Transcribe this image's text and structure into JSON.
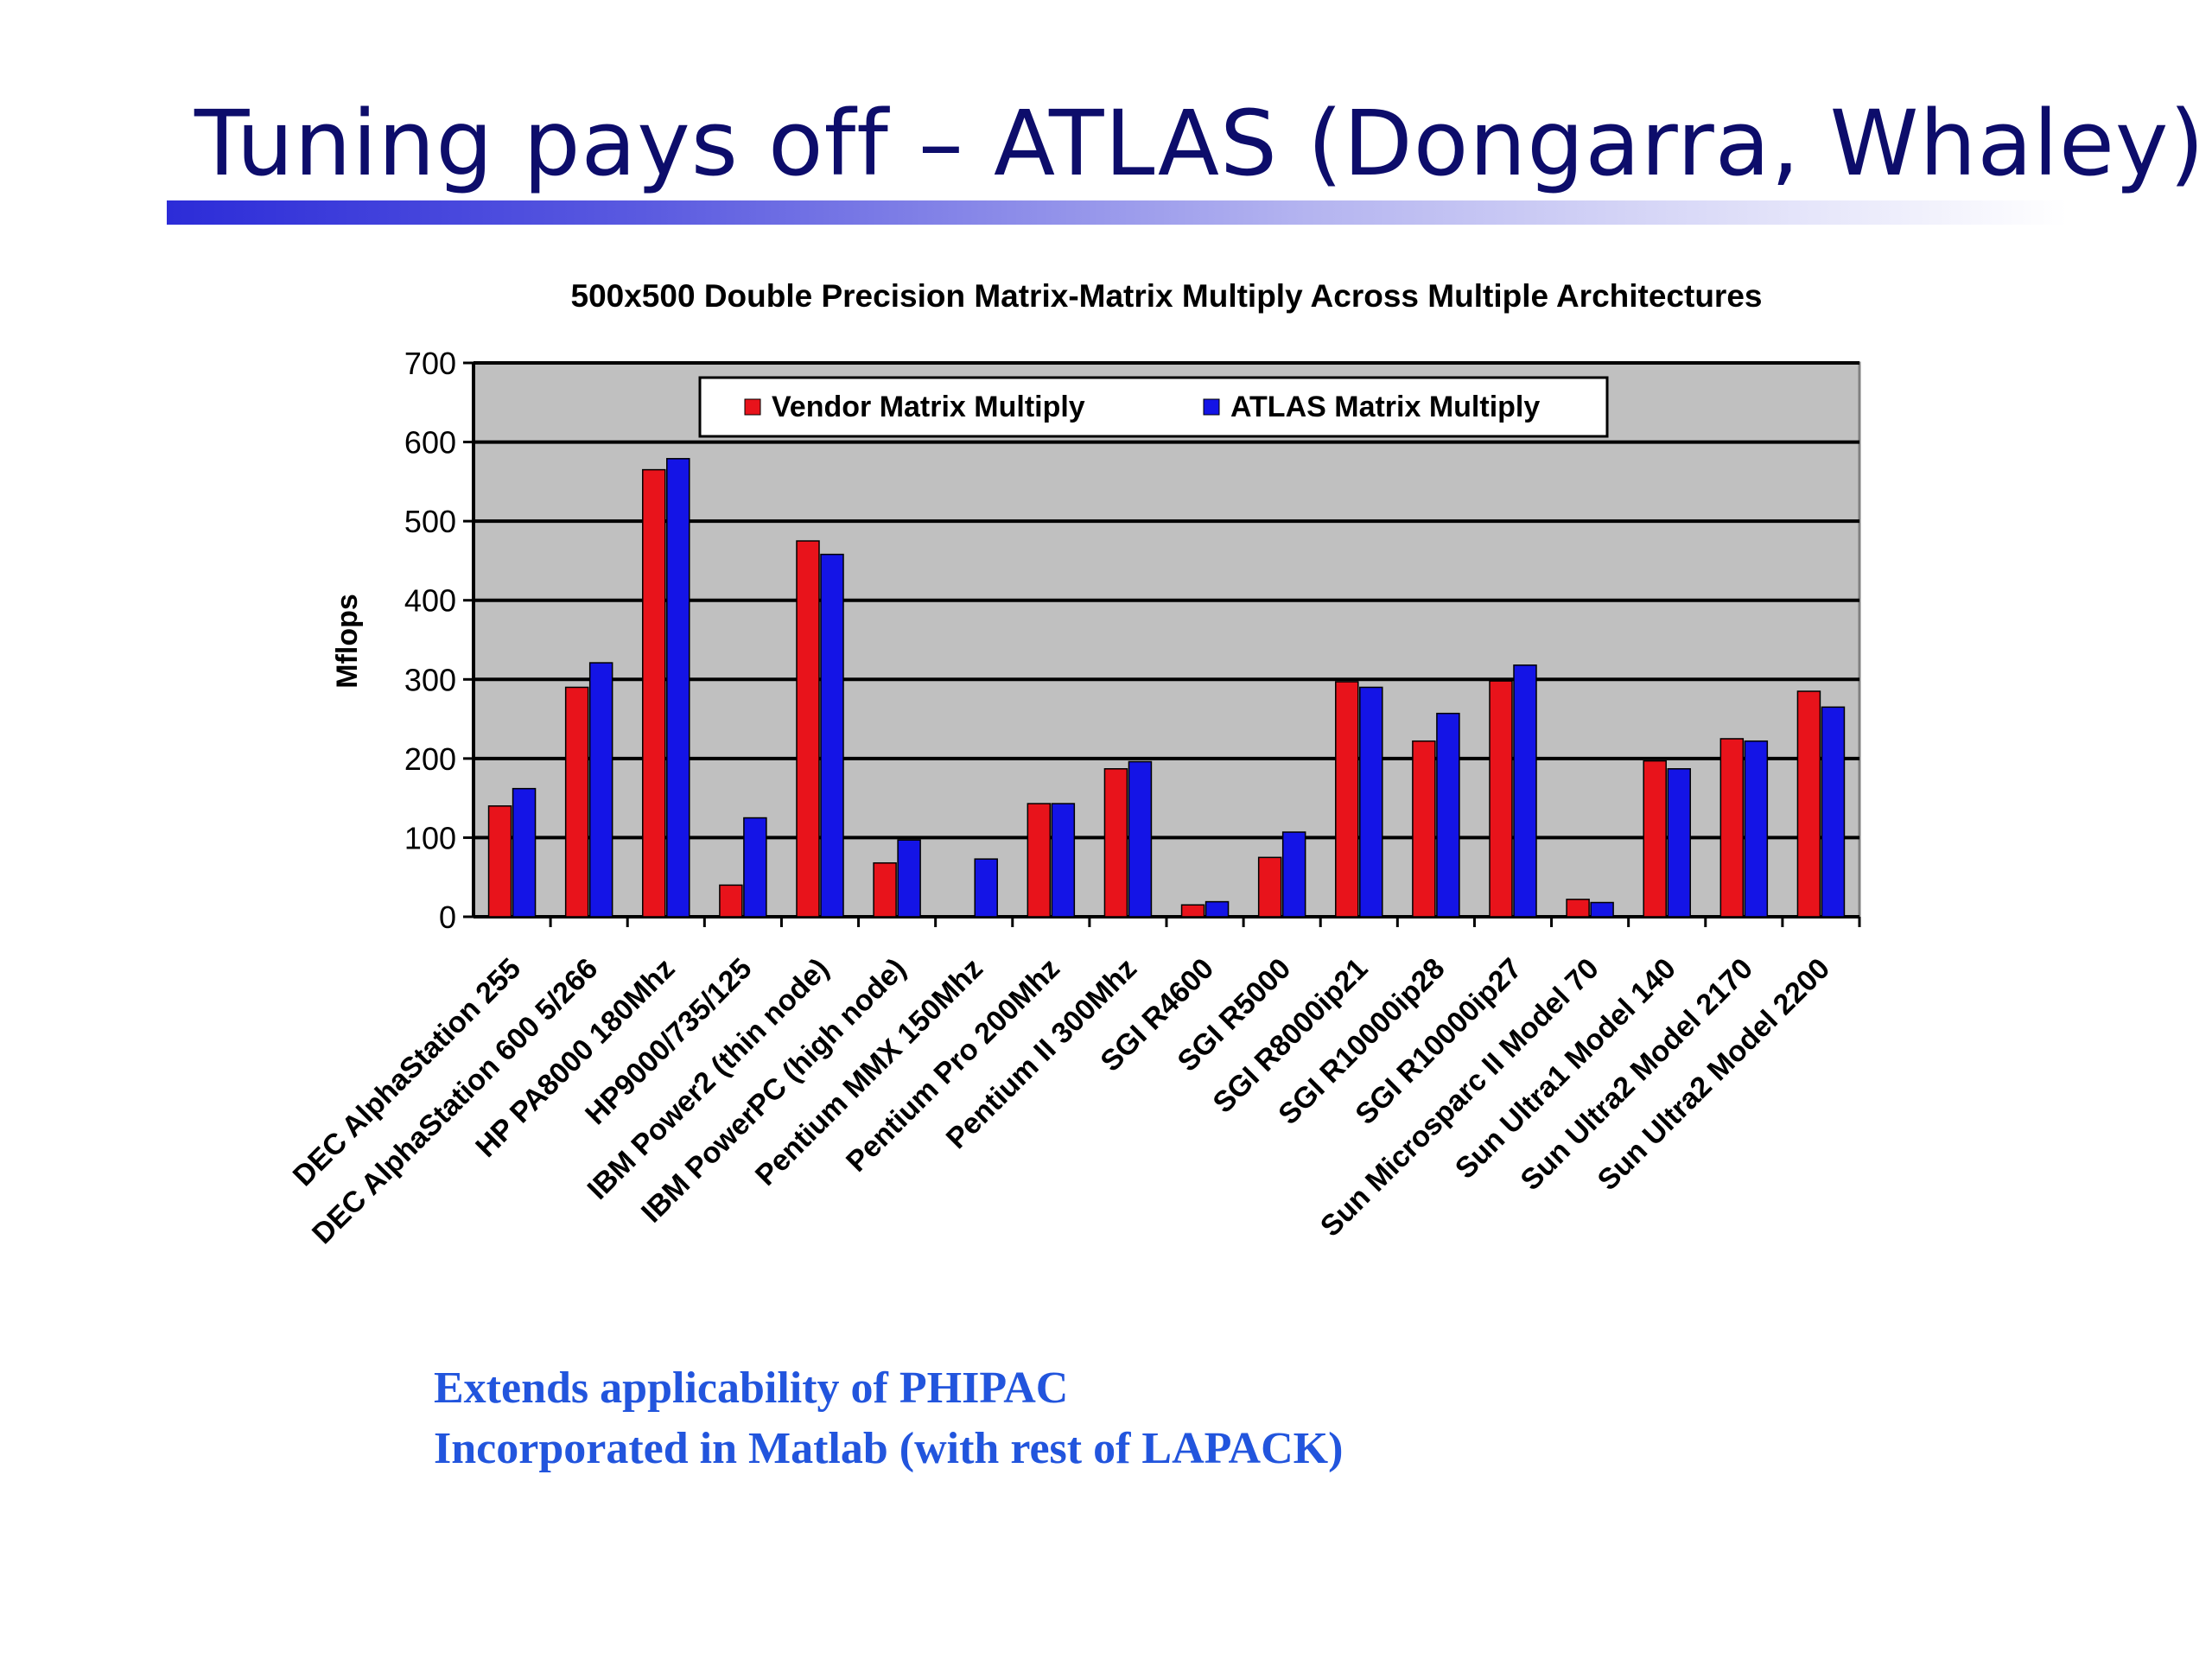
{
  "slide": {
    "title": "Tuning pays off – ATLAS (Dongarra, Whaley)",
    "bullets": [
      "Extends applicability of PHIPAC",
      "Incorporated in Matlab (with rest of LAPACK)"
    ]
  },
  "chart_data": {
    "type": "bar",
    "title": "500x500 Double Precision Matrix-Matrix Multiply Across Multiple Architectures",
    "xlabel": "",
    "ylabel": "Mflops",
    "ylim": [
      0,
      700
    ],
    "yticks": [
      0,
      100,
      200,
      300,
      400,
      500,
      600,
      700
    ],
    "grid": true,
    "legend_position": "top-center",
    "categories": [
      "DEC AlphaStation 255",
      "DEC AlphaStation 600 5/266",
      "HP PA8000 180Mhz",
      "HP9000/735/125",
      "IBM Power2 (thin node)",
      "IBM PowerPC (high node)",
      "Pentium MMX 150Mhz",
      "Pentium Pro 200Mhz",
      "Pentium II 300Mhz",
      "SGI R4600",
      "SGI R5000",
      "SGI R8000ip21",
      "SGI R10000ip28",
      "SGI R10000ip27",
      "Sun Microsparc II Model 70",
      "Sun Ultra1 Model 140",
      "Sun Ultra2 Model 2170",
      "Sun Ultra2 Model 2200"
    ],
    "series": [
      {
        "name": "Vendor Matrix Multiply",
        "color": "#e8131b",
        "values": [
          140,
          290,
          565,
          40,
          475,
          68,
          null,
          143,
          187,
          15,
          75,
          297,
          222,
          298,
          22,
          197,
          225,
          285
        ]
      },
      {
        "name": "ATLAS Matrix Multiply",
        "color": "#1414e6",
        "values": [
          162,
          321,
          579,
          125,
          458,
          97,
          73,
          143,
          196,
          19,
          107,
          290,
          257,
          318,
          18,
          187,
          222,
          265
        ]
      }
    ],
    "plot_background": "#c0c0c0"
  }
}
